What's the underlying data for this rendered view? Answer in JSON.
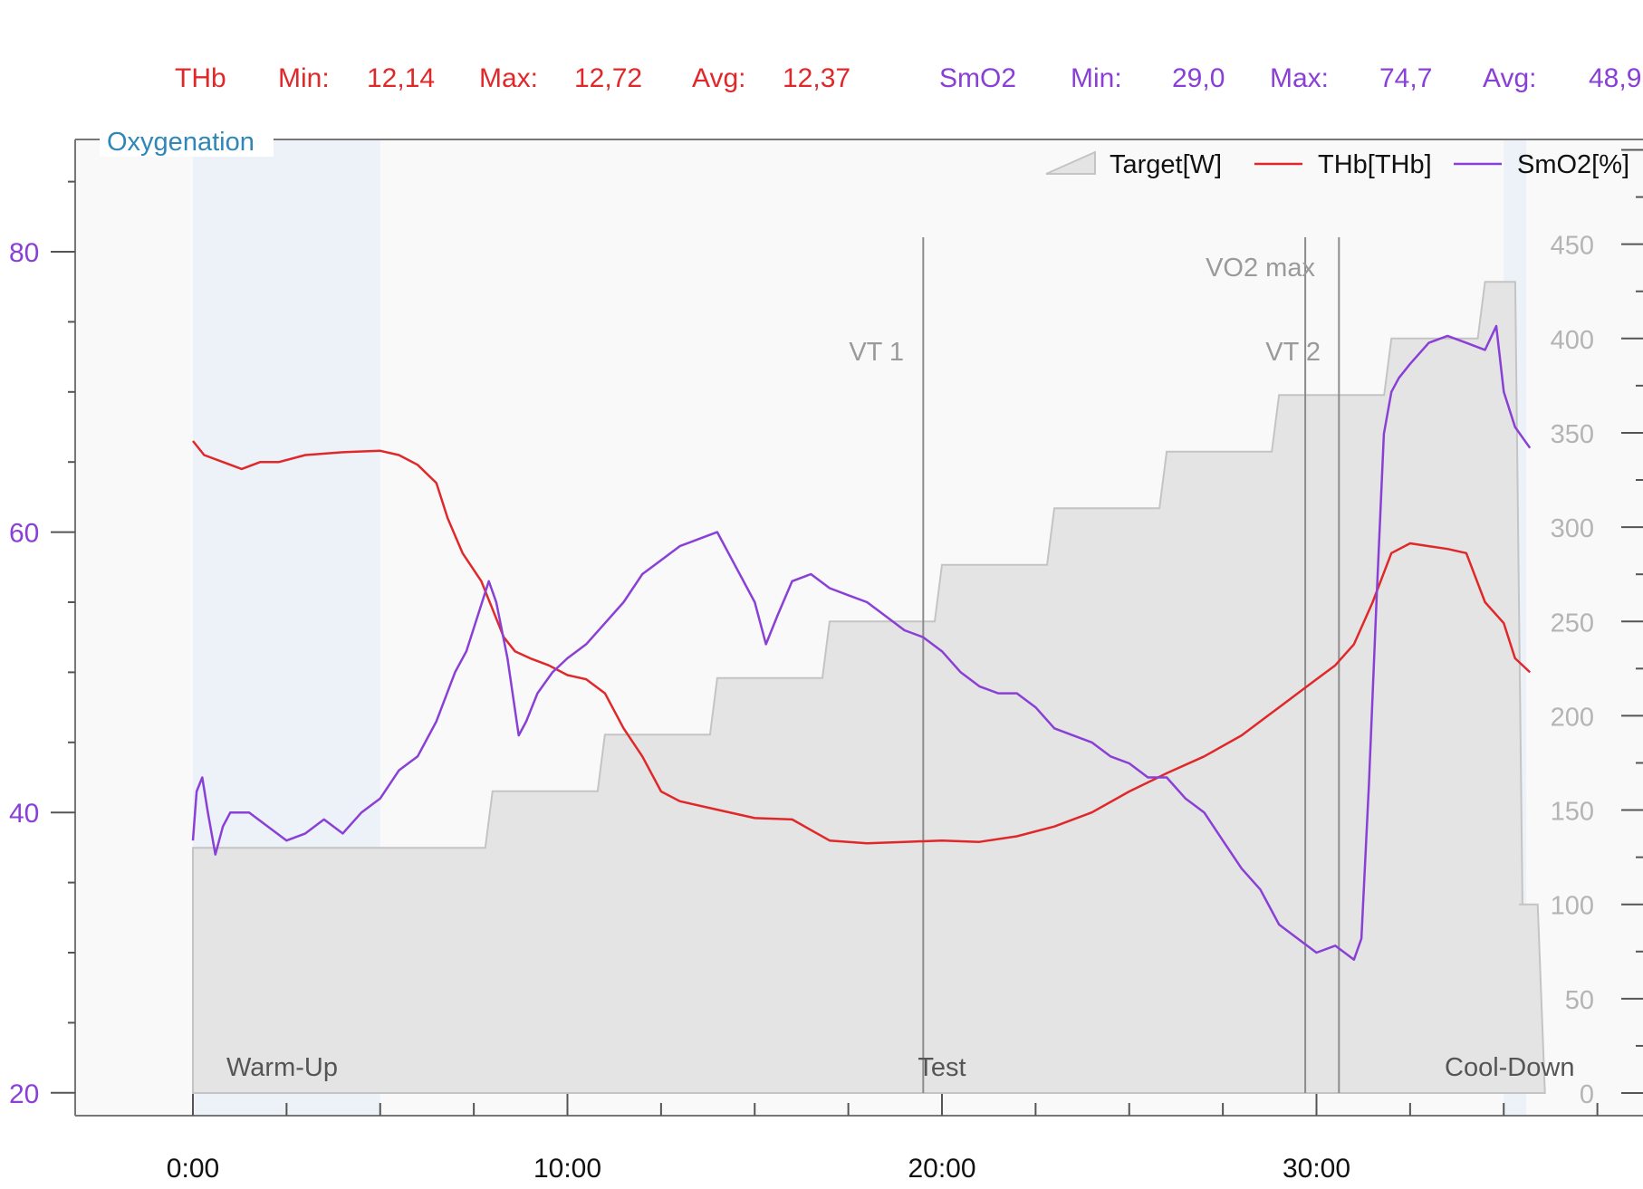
{
  "summary": {
    "thb": {
      "name": "THb",
      "min_label": "Min:",
      "min": "12,14",
      "max_label": "Max:",
      "max": "12,72",
      "avg_label": "Avg:",
      "avg": "12,37",
      "color": "#e0282a"
    },
    "smo2": {
      "name": "SmO2",
      "min_label": "Min:",
      "min": "29,0",
      "max_label": "Max:",
      "max": "74,7",
      "avg_label": "Avg:",
      "avg": "48,9",
      "color": "#8a3fd6"
    }
  },
  "panel": {
    "title": "Oxygenation",
    "title_color": "#2f86b8"
  },
  "chart_data": {
    "type": "line",
    "xlabel": "",
    "ylabel_left": "",
    "ylabel_right": "",
    "x_unit": "minutes",
    "xlim": [
      -8.06,
      38.64
    ],
    "xticks": [
      0,
      10,
      20,
      30
    ],
    "xtick_labels": [
      "0:00",
      "10:00",
      "20:00",
      "30:00"
    ],
    "ylim_left": [
      18.4,
      88
    ],
    "yticks_left": [
      20,
      40,
      60,
      80
    ],
    "ylim_right": [
      -4.5,
      520
    ],
    "yticks_right": [
      0,
      50,
      100,
      150,
      200,
      250,
      300,
      350,
      400,
      450
    ],
    "grid": false,
    "legend": {
      "position": "top-right",
      "entries": [
        "Target[W]",
        "THb[THb]",
        "SmO2[%]"
      ]
    },
    "series": [
      {
        "name": "Target[W]",
        "axis": "right",
        "style": "step-area",
        "color": "#c4c4c4",
        "fill": "#e4e4e4",
        "x": [
          0,
          8,
          11,
          14,
          17,
          20,
          23,
          26,
          29,
          32,
          34.5,
          35.5,
          35.6,
          36.1
        ],
        "y": [
          130,
          160,
          190,
          220,
          250,
          280,
          310,
          340,
          370,
          400,
          430,
          100,
          100,
          0
        ]
      },
      {
        "name": "THb[THb]",
        "axis": "left",
        "style": "line",
        "color": "#e0282a",
        "x": [
          0,
          0.3,
          0.8,
          1.3,
          1.8,
          2.3,
          3.0,
          4.0,
          5.0,
          5.5,
          6.0,
          6.5,
          6.8,
          7.2,
          7.7,
          8.0,
          8.3,
          8.6,
          9.0,
          9.5,
          10.0,
          10.5,
          11.0,
          11.5,
          12.0,
          12.5,
          13.0,
          14.0,
          15.0,
          16.0,
          17.0,
          18.0,
          19.0,
          20.0,
          21.0,
          22.0,
          23.0,
          24.0,
          25.0,
          26.0,
          27.0,
          28.0,
          29.0,
          30.0,
          30.5,
          31.0,
          31.5,
          32.0,
          32.5,
          33.0,
          33.5,
          34.0,
          34.5,
          35.0,
          35.3,
          35.7
        ],
        "y": [
          66.5,
          65.5,
          65.0,
          64.5,
          65.0,
          65.0,
          65.5,
          65.7,
          65.8,
          65.5,
          64.8,
          63.5,
          61.0,
          58.5,
          56.5,
          54.5,
          52.5,
          51.5,
          51.0,
          50.5,
          49.8,
          49.5,
          48.5,
          46.0,
          44.0,
          41.5,
          40.8,
          40.2,
          39.6,
          39.5,
          38.0,
          37.8,
          37.9,
          38.0,
          37.9,
          38.3,
          39.0,
          40.0,
          41.5,
          42.8,
          44.0,
          45.5,
          47.5,
          49.5,
          50.5,
          52.0,
          55.0,
          58.5,
          59.2,
          59.0,
          58.8,
          58.5,
          55.0,
          53.5,
          51.0,
          50.0
        ]
      },
      {
        "name": "SmO2[%]",
        "axis": "left",
        "style": "line",
        "color": "#8a3fd6",
        "x": [
          0,
          0.1,
          0.25,
          0.4,
          0.6,
          0.8,
          1.0,
          1.5,
          2.0,
          2.5,
          3.0,
          3.5,
          4.0,
          4.5,
          5.0,
          5.5,
          6.0,
          6.5,
          7.0,
          7.3,
          7.6,
          7.9,
          8.1,
          8.4,
          8.7,
          8.9,
          9.2,
          9.6,
          10.0,
          10.5,
          11.0,
          11.5,
          12.0,
          12.5,
          13.0,
          13.5,
          14.0,
          14.5,
          15.0,
          15.3,
          15.6,
          16.0,
          16.5,
          17.0,
          17.5,
          18.0,
          18.5,
          19.0,
          19.5,
          20.0,
          20.5,
          21.0,
          21.5,
          22.0,
          22.5,
          23.0,
          23.5,
          24.0,
          24.5,
          25.0,
          25.5,
          26.0,
          26.5,
          27.0,
          27.5,
          28.0,
          28.5,
          29.0,
          29.5,
          30.0,
          30.5,
          31.0,
          31.2,
          31.4,
          31.6,
          31.8,
          32.0,
          32.2,
          32.5,
          33.0,
          33.5,
          34.0,
          34.5,
          34.8,
          35.0,
          35.3,
          35.7
        ],
        "y": [
          38,
          41.5,
          42.5,
          40,
          37,
          39,
          40,
          40,
          39,
          38,
          38.5,
          39.5,
          38.5,
          40,
          41,
          43,
          44,
          46.5,
          50,
          51.5,
          54,
          56.5,
          55,
          51,
          45.5,
          46.5,
          48.5,
          50,
          51,
          52,
          53.5,
          55,
          57,
          58,
          59,
          59.5,
          60,
          57.5,
          55,
          52,
          54,
          56.5,
          57,
          56,
          55.5,
          55,
          54,
          53,
          52.5,
          51.5,
          50,
          49,
          48.5,
          48.5,
          47.5,
          46,
          45.5,
          45,
          44,
          43.5,
          42.5,
          42.5,
          41,
          40,
          38,
          36,
          34.5,
          32,
          31,
          30,
          30.5,
          29.5,
          31,
          42,
          55,
          67,
          70,
          71,
          72,
          73.5,
          74,
          73.5,
          73,
          74.7,
          70,
          67.5,
          66
        ]
      }
    ],
    "markers": [
      {
        "label": "VT 1",
        "x": 19.5
      },
      {
        "label": "VO2 max",
        "x": 29.7
      },
      {
        "label": "VT 2",
        "x": 30.6
      }
    ],
    "phases": [
      {
        "label": "Warm-Up",
        "start": 0,
        "end": 5.0
      },
      {
        "label": "Test",
        "start": 5.0,
        "end": 35.0
      },
      {
        "label": "Cool-Down",
        "start": 35.0,
        "end": 35.6
      }
    ]
  }
}
